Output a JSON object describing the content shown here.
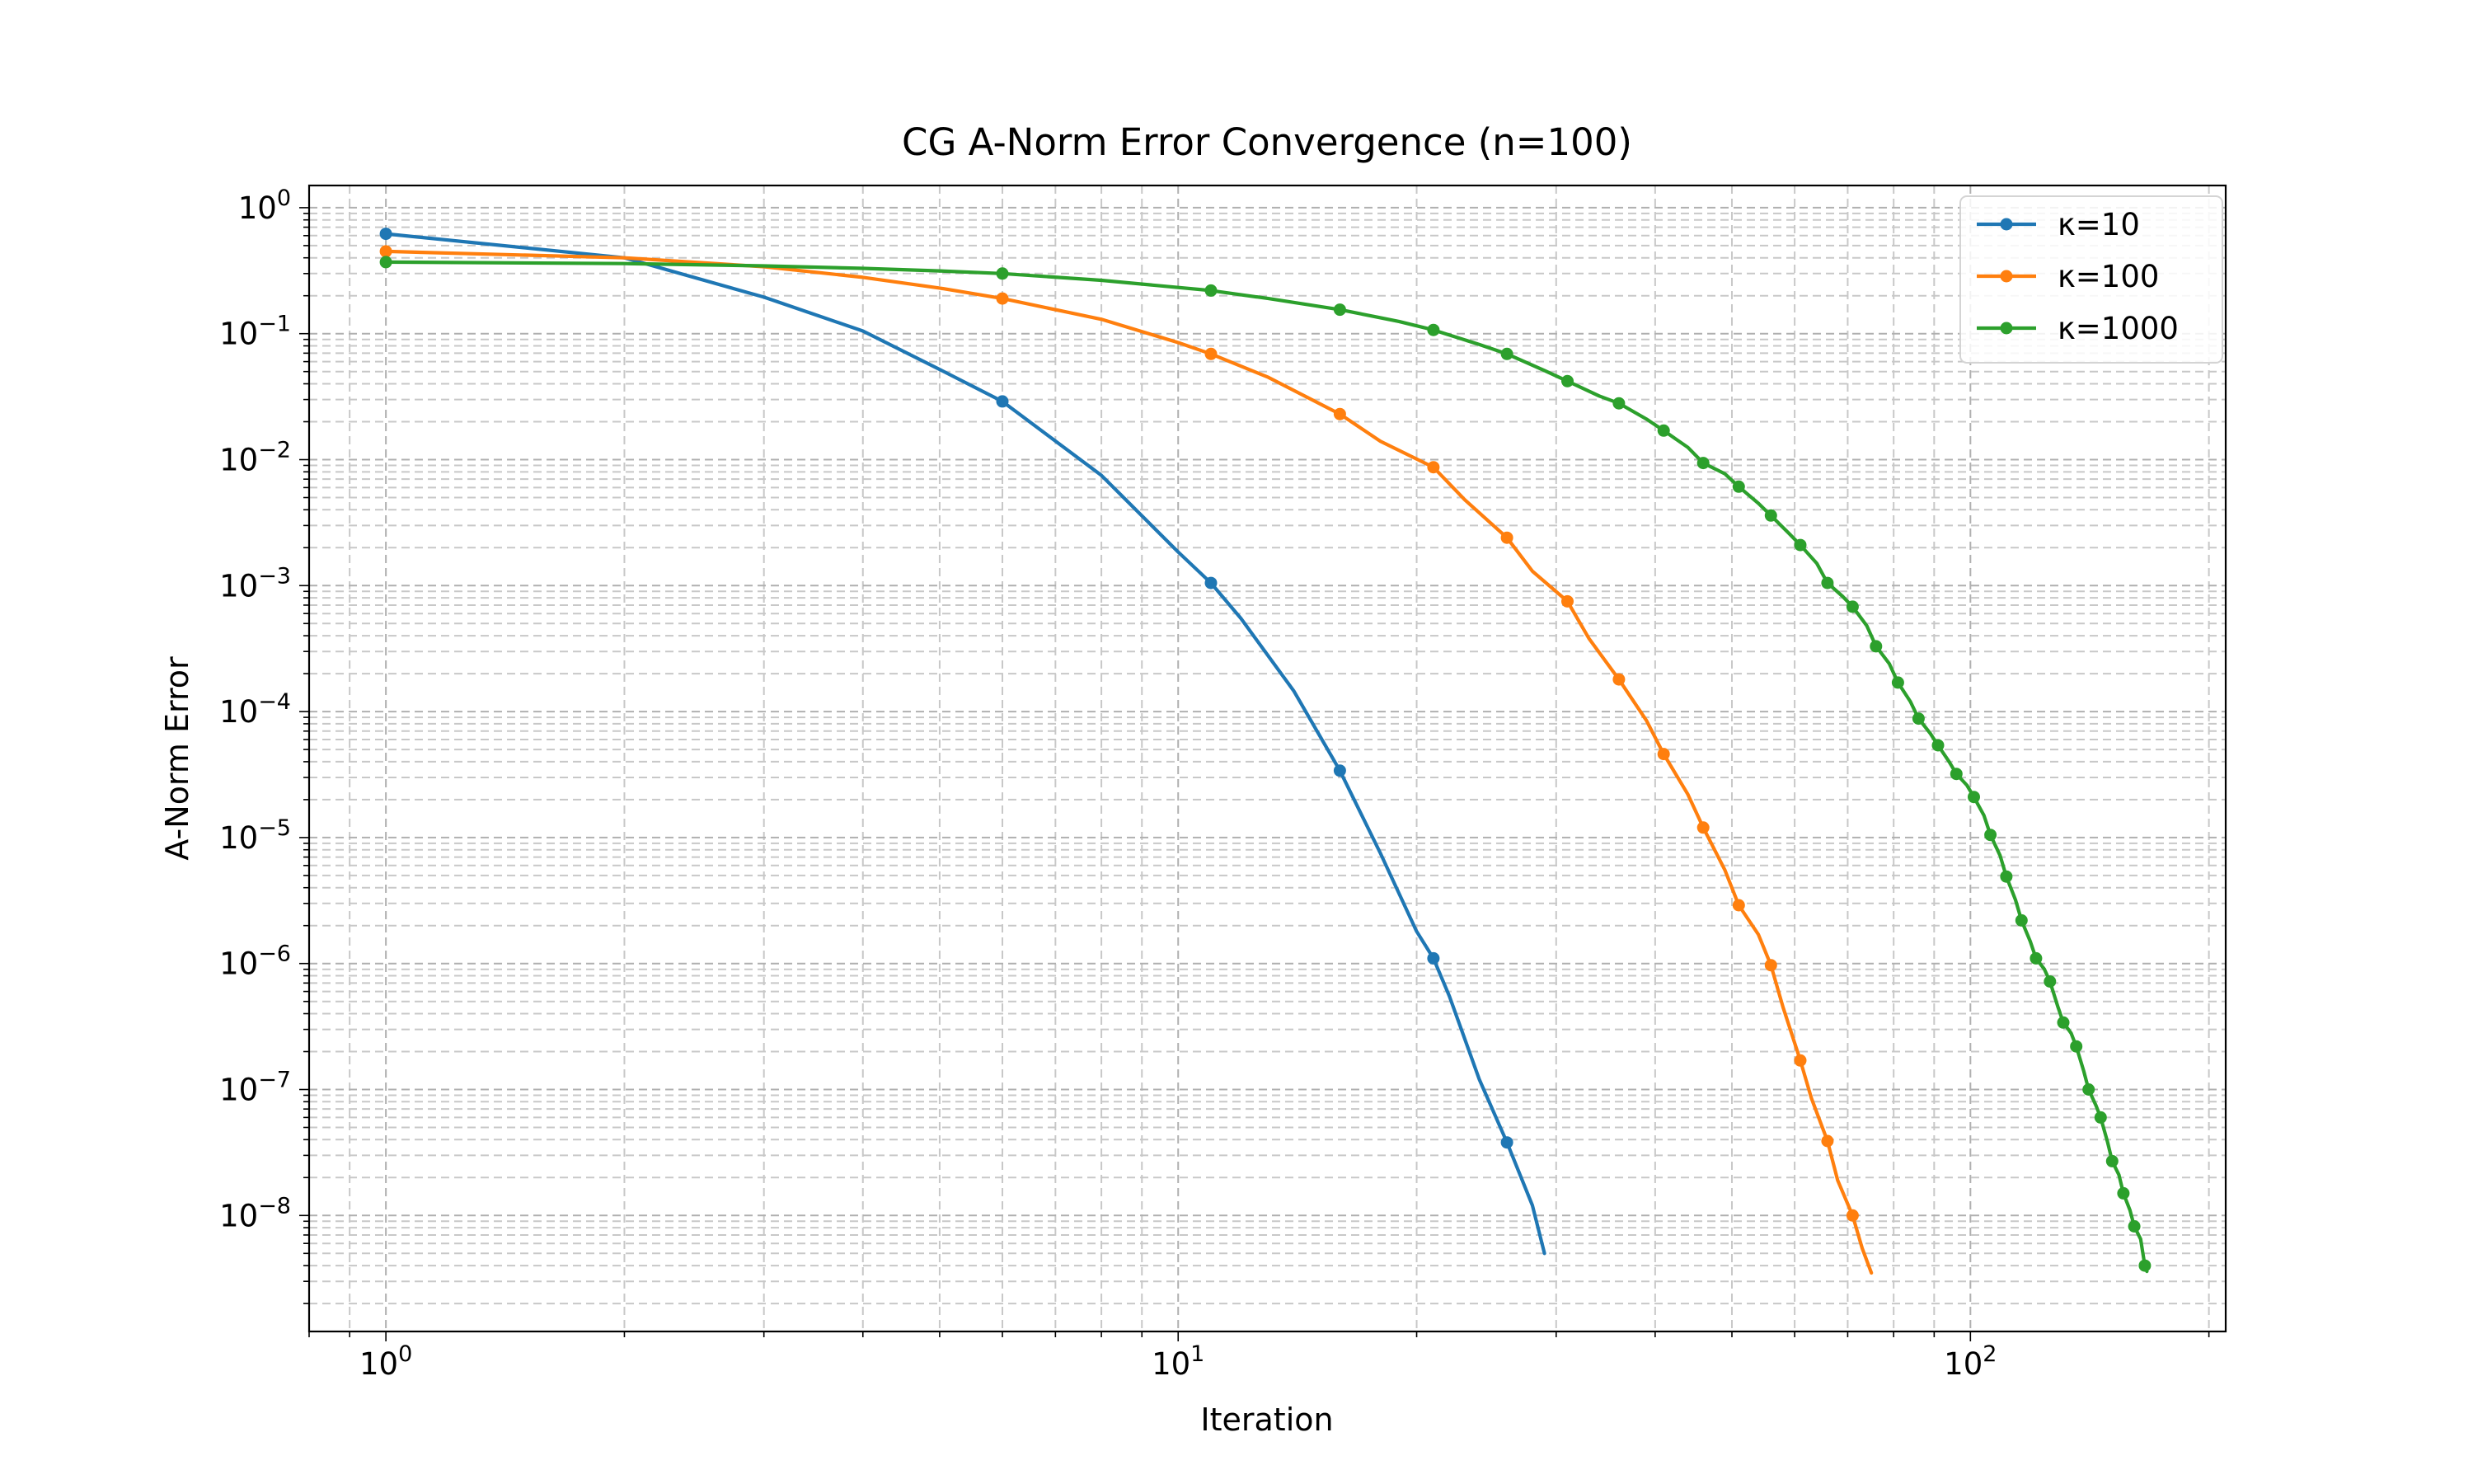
{
  "chart_data": {
    "type": "line",
    "title": "CG A-Norm Error Convergence (n=100)",
    "xlabel": "Iteration",
    "ylabel": "A-Norm Error",
    "xscale": "log",
    "yscale": "log",
    "xlim": [
      0.8,
      210
    ],
    "ylim": [
      1.2e-09,
      1.5
    ],
    "xtick_labels": [
      {
        "value": 1,
        "base": "10",
        "exp": "0"
      },
      {
        "value": 10,
        "base": "10",
        "exp": "1"
      },
      {
        "value": 100,
        "base": "10",
        "exp": "2"
      }
    ],
    "ytick_labels": [
      {
        "value": 1,
        "base": "10",
        "exp": "0"
      },
      {
        "value": 0.1,
        "base": "10",
        "exp": "−1"
      },
      {
        "value": 0.01,
        "base": "10",
        "exp": "−2"
      },
      {
        "value": 0.001,
        "base": "10",
        "exp": "−3"
      },
      {
        "value": 0.0001,
        "base": "10",
        "exp": "−4"
      },
      {
        "value": 1e-05,
        "base": "10",
        "exp": "−5"
      },
      {
        "value": 1e-06,
        "base": "10",
        "exp": "−6"
      },
      {
        "value": 1e-07,
        "base": "10",
        "exp": "−7"
      },
      {
        "value": 1e-08,
        "base": "10",
        "exp": "−8"
      }
    ],
    "grid": true,
    "legend_position": "upper right",
    "series": [
      {
        "name": "κ=10",
        "color": "#1f77b4",
        "points": [
          [
            1,
            0.62
          ],
          [
            2,
            0.4
          ],
          [
            3,
            0.195
          ],
          [
            4,
            0.105
          ],
          [
            5,
            0.052
          ],
          [
            6,
            0.029
          ],
          [
            8,
            0.0075
          ],
          [
            10,
            0.00185
          ],
          [
            11,
            0.00105
          ],
          [
            12,
            0.00055
          ],
          [
            14,
            0.000145
          ],
          [
            16,
            3.4e-05
          ],
          [
            18,
            7.5e-06
          ],
          [
            20,
            1.8e-06
          ],
          [
            21,
            1.1e-06
          ],
          [
            22,
            5.5e-07
          ],
          [
            24,
            1.2e-07
          ],
          [
            26,
            3.8e-08
          ],
          [
            28,
            1.2e-08
          ],
          [
            29,
            5e-09
          ]
        ],
        "markers": [
          [
            1,
            0.62
          ],
          [
            6,
            0.029
          ],
          [
            11,
            0.00105
          ],
          [
            16,
            3.4e-05
          ],
          [
            21,
            1.1e-06
          ],
          [
            26,
            3.8e-08
          ]
        ]
      },
      {
        "name": "κ=100",
        "color": "#ff7f0e",
        "points": [
          [
            1,
            0.45
          ],
          [
            2,
            0.4
          ],
          [
            3,
            0.34
          ],
          [
            4,
            0.28
          ],
          [
            5,
            0.23
          ],
          [
            6,
            0.19
          ],
          [
            8,
            0.13
          ],
          [
            10,
            0.085
          ],
          [
            11,
            0.069
          ],
          [
            13,
            0.045
          ],
          [
            16,
            0.023
          ],
          [
            18,
            0.014
          ],
          [
            21,
            0.0087
          ],
          [
            23,
            0.0048
          ],
          [
            26,
            0.0024
          ],
          [
            28,
            0.0013
          ],
          [
            31,
            0.00075
          ],
          [
            33,
            0.00038
          ],
          [
            36,
            0.00018
          ],
          [
            39,
            8.5e-05
          ],
          [
            41,
            4.6e-05
          ],
          [
            44,
            2.2e-05
          ],
          [
            46,
            1.2e-05
          ],
          [
            49,
            5.5e-06
          ],
          [
            51,
            2.9e-06
          ],
          [
            54,
            1.7e-06
          ],
          [
            56,
            9.7e-07
          ],
          [
            58,
            4.5e-07
          ],
          [
            61,
            1.7e-07
          ],
          [
            63,
            8.5e-08
          ],
          [
            66,
            3.9e-08
          ],
          [
            68,
            1.9e-08
          ],
          [
            71,
            1e-08
          ],
          [
            73,
            5.5e-09
          ],
          [
            75,
            3.5e-09
          ]
        ],
        "markers": [
          [
            1,
            0.45
          ],
          [
            6,
            0.19
          ],
          [
            11,
            0.069
          ],
          [
            16,
            0.023
          ],
          [
            21,
            0.0087
          ],
          [
            26,
            0.0024
          ],
          [
            31,
            0.00075
          ],
          [
            36,
            0.00018
          ],
          [
            41,
            4.6e-05
          ],
          [
            46,
            1.2e-05
          ],
          [
            51,
            2.9e-06
          ],
          [
            56,
            9.7e-07
          ],
          [
            61,
            1.7e-07
          ],
          [
            66,
            3.9e-08
          ],
          [
            71,
            1e-08
          ]
        ]
      },
      {
        "name": "κ=1000",
        "color": "#2ca02c",
        "points": [
          [
            1,
            0.37
          ],
          [
            2,
            0.36
          ],
          [
            3,
            0.345
          ],
          [
            4,
            0.33
          ],
          [
            5,
            0.315
          ],
          [
            6,
            0.3
          ],
          [
            8,
            0.265
          ],
          [
            11,
            0.22
          ],
          [
            13,
            0.19
          ],
          [
            16,
            0.155
          ],
          [
            19,
            0.125
          ],
          [
            21,
            0.107
          ],
          [
            24,
            0.082
          ],
          [
            26,
            0.069
          ],
          [
            29,
            0.051
          ],
          [
            31,
            0.042
          ],
          [
            34,
            0.032
          ],
          [
            36,
            0.028
          ],
          [
            39,
            0.021
          ],
          [
            41,
            0.017
          ],
          [
            44,
            0.0125
          ],
          [
            46,
            0.0094
          ],
          [
            49,
            0.0077
          ],
          [
            51,
            0.0061
          ],
          [
            54,
            0.0045
          ],
          [
            56,
            0.0036
          ],
          [
            59,
            0.0026
          ],
          [
            61,
            0.0021
          ],
          [
            64,
            0.0015
          ],
          [
            66,
            0.00105
          ],
          [
            69,
            0.00082
          ],
          [
            71,
            0.00068
          ],
          [
            74,
            0.00048
          ],
          [
            76,
            0.00033
          ],
          [
            79,
            0.00024
          ],
          [
            81,
            0.00017
          ],
          [
            84,
            0.00012
          ],
          [
            86,
            8.8e-05
          ],
          [
            89,
            6.7e-05
          ],
          [
            91,
            5.4e-05
          ],
          [
            94,
            4e-05
          ],
          [
            96,
            3.2e-05
          ],
          [
            99,
            2.6e-05
          ],
          [
            101,
            2.1e-05
          ],
          [
            104,
            1.5e-05
          ],
          [
            106,
            1.05e-05
          ],
          [
            109,
            7.2e-06
          ],
          [
            111,
            4.9e-06
          ],
          [
            114,
            3.2e-06
          ],
          [
            116,
            2.2e-06
          ],
          [
            119,
            1.5e-06
          ],
          [
            121,
            1.1e-06
          ],
          [
            124,
            9e-07
          ],
          [
            126,
            7.2e-07
          ],
          [
            129,
            4.5e-07
          ],
          [
            131,
            3.4e-07
          ],
          [
            134,
            2.8e-07
          ],
          [
            136,
            2.2e-07
          ],
          [
            139,
            1.4e-07
          ],
          [
            141,
            1e-07
          ],
          [
            144,
            7.5e-08
          ],
          [
            146,
            6e-08
          ],
          [
            149,
            3.8e-08
          ],
          [
            151,
            2.7e-08
          ],
          [
            154,
            2.1e-08
          ],
          [
            156,
            1.5e-08
          ],
          [
            159,
            1.1e-08
          ],
          [
            161,
            8.2e-09
          ],
          [
            164,
            6.5e-09
          ],
          [
            166,
            4e-09
          ],
          [
            167,
            3.6e-09
          ]
        ],
        "markers": [
          [
            1,
            0.37
          ],
          [
            6,
            0.3
          ],
          [
            11,
            0.22
          ],
          [
            16,
            0.155
          ],
          [
            21,
            0.107
          ],
          [
            26,
            0.069
          ],
          [
            31,
            0.042
          ],
          [
            36,
            0.028
          ],
          [
            41,
            0.017
          ],
          [
            46,
            0.0094
          ],
          [
            51,
            0.0061
          ],
          [
            56,
            0.0036
          ],
          [
            61,
            0.0021
          ],
          [
            66,
            0.00105
          ],
          [
            71,
            0.00068
          ],
          [
            76,
            0.00033
          ],
          [
            81,
            0.00017
          ],
          [
            86,
            8.8e-05
          ],
          [
            91,
            5.4e-05
          ],
          [
            96,
            3.2e-05
          ],
          [
            101,
            2.1e-05
          ],
          [
            106,
            1.05e-05
          ],
          [
            111,
            4.9e-06
          ],
          [
            116,
            2.2e-06
          ],
          [
            121,
            1.1e-06
          ],
          [
            126,
            7.2e-07
          ],
          [
            131,
            3.4e-07
          ],
          [
            136,
            2.2e-07
          ],
          [
            141,
            1e-07
          ],
          [
            146,
            6e-08
          ],
          [
            151,
            2.7e-08
          ],
          [
            156,
            1.5e-08
          ],
          [
            161,
            8.2e-09
          ],
          [
            166,
            4e-09
          ]
        ]
      }
    ]
  }
}
